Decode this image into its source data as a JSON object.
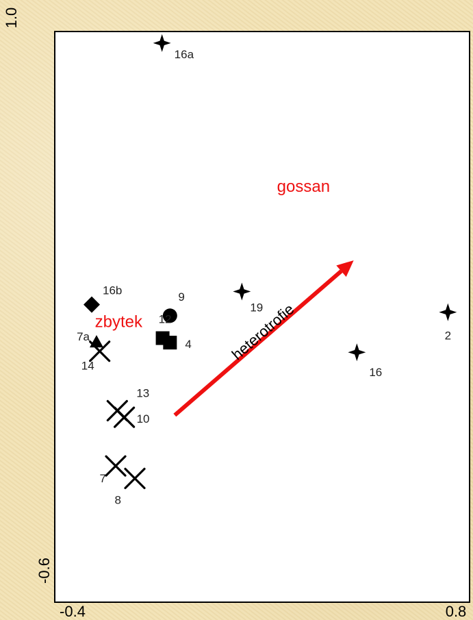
{
  "chart_data": {
    "type": "scatter",
    "title": "",
    "xlabel": "",
    "ylabel": "",
    "xlim": [
      -0.4,
      0.8
    ],
    "ylim": [
      -0.6,
      1.0
    ],
    "x_tick_labels": [
      "-0.4",
      "0.8"
    ],
    "y_tick_labels": [
      "-0.6",
      "1.0"
    ],
    "grid": false,
    "legend": "none",
    "points": [
      {
        "label": "16a",
        "x": -0.12,
        "y": 0.927,
        "marker": "star4"
      },
      {
        "label": "19",
        "x": 0.13,
        "y": 0.208,
        "marker": "star4"
      },
      {
        "label": "2",
        "x": 0.775,
        "y": 0.148,
        "marker": "star4"
      },
      {
        "label": "16",
        "x": 0.49,
        "y": 0.032,
        "marker": "star4"
      },
      {
        "label": "16b",
        "x": -0.34,
        "y": 0.17,
        "marker": "diamond"
      },
      {
        "label": "9",
        "x": -0.095,
        "y": 0.138,
        "marker": "circle"
      },
      {
        "label": "12",
        "x": -0.118,
        "y": 0.073,
        "marker": "square"
      },
      {
        "label": "4",
        "x": -0.095,
        "y": 0.06,
        "marker": "square"
      },
      {
        "label": "7a",
        "x": -0.325,
        "y": 0.062,
        "marker": "triangle"
      },
      {
        "label": "14",
        "x": -0.315,
        "y": 0.035,
        "marker": "cross"
      },
      {
        "label": "13",
        "x": -0.26,
        "y": -0.137,
        "marker": "cross"
      },
      {
        "label": "10",
        "x": -0.238,
        "y": -0.156,
        "marker": "cross"
      },
      {
        "label": "7",
        "x": -0.265,
        "y": -0.297,
        "marker": "cross"
      },
      {
        "label": "8",
        "x": -0.205,
        "y": -0.333,
        "marker": "cross"
      }
    ],
    "vectors": [
      {
        "label": "heterotrofie",
        "x0": -0.08,
        "y0": -0.15,
        "x1": 0.48,
        "y1": 0.298,
        "color": "#ee1111"
      }
    ],
    "annotations": [
      {
        "text": "gossan",
        "x": 0.24,
        "y": 0.496,
        "color": "#ee1111"
      },
      {
        "text": "zbytek",
        "x": -0.33,
        "y": 0.105,
        "color": "#ee1111"
      }
    ]
  }
}
